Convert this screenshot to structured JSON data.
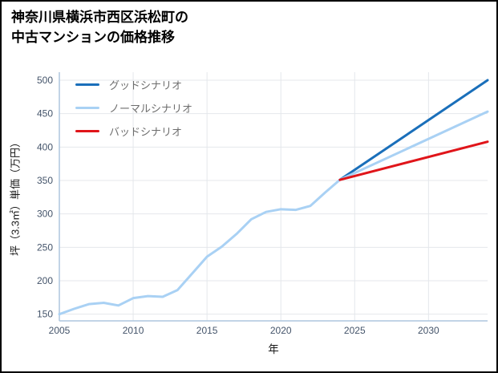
{
  "chart_data": {
    "type": "line",
    "title": "神奈川県横浜市西区浜松町の\n中古マンションの価格推移",
    "xlabel": "年",
    "ylabel": "坪（3.3㎡）単価（万円）",
    "x_range": [
      2005,
      2034
    ],
    "y_range": [
      140,
      512
    ],
    "x_ticks": [
      2005,
      2010,
      2015,
      2020,
      2025,
      2030
    ],
    "y_ticks": [
      150,
      200,
      250,
      300,
      350,
      400,
      450,
      500
    ],
    "grid": true,
    "legend_position": "top-left",
    "colors": {
      "grid": "#e4e7eb",
      "axis": "#aec6de",
      "tick_label": "#44546a",
      "background": "#ffffff"
    },
    "series": [
      {
        "id": "history",
        "in_legend": false,
        "color": "#a9d1f4",
        "x": [
          2005,
          2006,
          2007,
          2008,
          2009,
          2010,
          2011,
          2012,
          2013,
          2014,
          2015,
          2016,
          2017,
          2018,
          2019,
          2020,
          2021,
          2022,
          2023,
          2024
        ],
        "values": [
          150,
          158,
          165,
          167,
          163,
          174,
          177,
          176,
          186,
          211,
          236,
          251,
          270,
          292,
          303,
          307,
          306,
          312,
          332,
          351
        ]
      },
      {
        "id": "good",
        "name": "グッドシナリオ",
        "in_legend": true,
        "color": "#1a6fba",
        "x": [
          2024,
          2034
        ],
        "values": [
          351,
          500
        ]
      },
      {
        "id": "normal",
        "name": "ノーマルシナリオ",
        "in_legend": true,
        "color": "#a9d1f4",
        "x": [
          2024,
          2034
        ],
        "values": [
          351,
          453
        ]
      },
      {
        "id": "bad",
        "name": "バッドシナリオ",
        "in_legend": true,
        "color": "#e0151a",
        "x": [
          2024,
          2034
        ],
        "values": [
          351,
          408
        ]
      }
    ]
  }
}
